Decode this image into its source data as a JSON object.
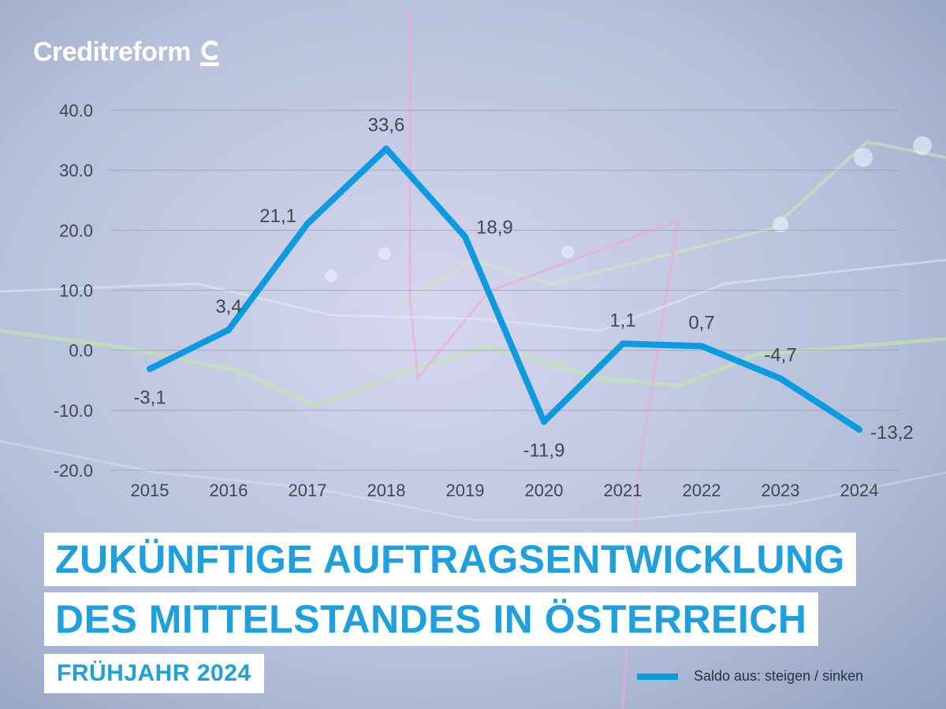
{
  "brand": {
    "name": "Creditreform"
  },
  "title_line1": "ZUKÜNFTIGE AUFTRAGSENTWICKLUNG",
  "title_line2": "DES MITTELSTANDES IN ÖSTERREICH",
  "subtitle": "FRÜHJAHR 2024",
  "legend": {
    "label": "Saldo aus: steigen / sinken"
  },
  "colors": {
    "line": "#0a9be0",
    "title": "#1ba0e2",
    "text": "#3f4750"
  },
  "chart_data": {
    "type": "line",
    "categories": [
      "2015",
      "2016",
      "2017",
      "2018",
      "2019",
      "2020",
      "2021",
      "2022",
      "2023",
      "2024"
    ],
    "series": [
      {
        "name": "Saldo aus: steigen / sinken",
        "values": [
          -3.1,
          3.4,
          21.1,
          33.6,
          18.9,
          -11.9,
          1.1,
          0.7,
          -4.7,
          -13.2
        ]
      }
    ],
    "data_labels": [
      "-3,1",
      "3,4",
      "21,1",
      "33,6",
      "18,9",
      "-11,9",
      "1,1",
      "0,7",
      "-4,7",
      "-13,2"
    ],
    "y_ticks": [
      40,
      30,
      20,
      10,
      0,
      -10,
      -20
    ],
    "y_tick_labels": [
      "40.0",
      "30.0",
      "20.0",
      "10.0",
      "0.0",
      "-10.0",
      "-20.0"
    ],
    "ylim": [
      -20,
      40
    ],
    "grid": true,
    "xlabel": "",
    "ylabel": "",
    "title": "ZUKÜNFTIGE AUFTRAGSENTWICKLUNG DES MITTELSTANDES IN ÖSTERREICH"
  }
}
